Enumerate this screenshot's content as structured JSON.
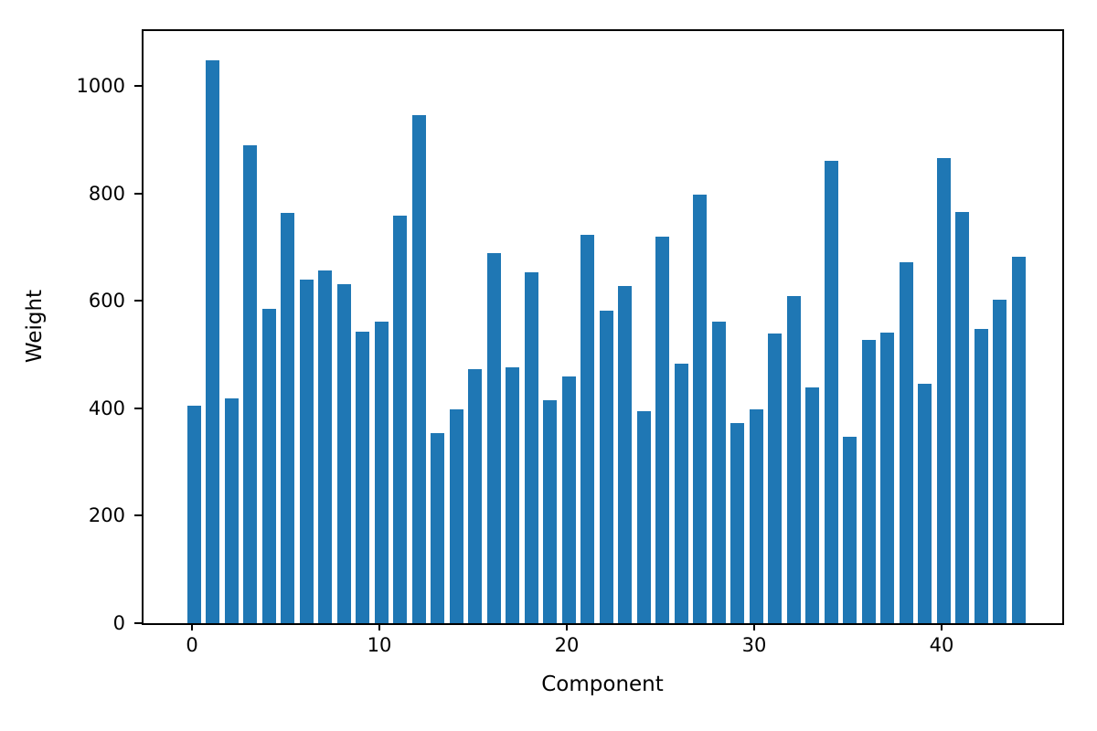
{
  "chart_data": {
    "type": "bar",
    "title": "",
    "xlabel": "Component",
    "ylabel": "Weight",
    "x": [
      0,
      1,
      2,
      3,
      4,
      5,
      6,
      7,
      8,
      9,
      10,
      11,
      12,
      13,
      14,
      15,
      16,
      17,
      18,
      19,
      20,
      21,
      22,
      23,
      24,
      25,
      26,
      27,
      28,
      29,
      30,
      31,
      32,
      33,
      34,
      35,
      36,
      37,
      38,
      39,
      40,
      41,
      42,
      43,
      44
    ],
    "values": [
      405,
      1048,
      418,
      890,
      585,
      763,
      640,
      656,
      631,
      542,
      562,
      758,
      945,
      353,
      398,
      472,
      689,
      477,
      653,
      415,
      459,
      722,
      581,
      627,
      395,
      719,
      483,
      797,
      561,
      373,
      398,
      539,
      608,
      439,
      861,
      347,
      527,
      540,
      672,
      446,
      865,
      765,
      548,
      602,
      682
    ],
    "yticks": [
      0,
      200,
      400,
      600,
      800,
      1000
    ],
    "xticks": [
      0,
      10,
      20,
      30,
      40
    ],
    "ylim": [
      0,
      1102
    ],
    "xlim": [
      -2.7,
      46.3
    ],
    "grid": false,
    "legend": null,
    "bar_color": "#1f77b4",
    "axis_color": "#000000",
    "background_color": "#ffffff"
  }
}
